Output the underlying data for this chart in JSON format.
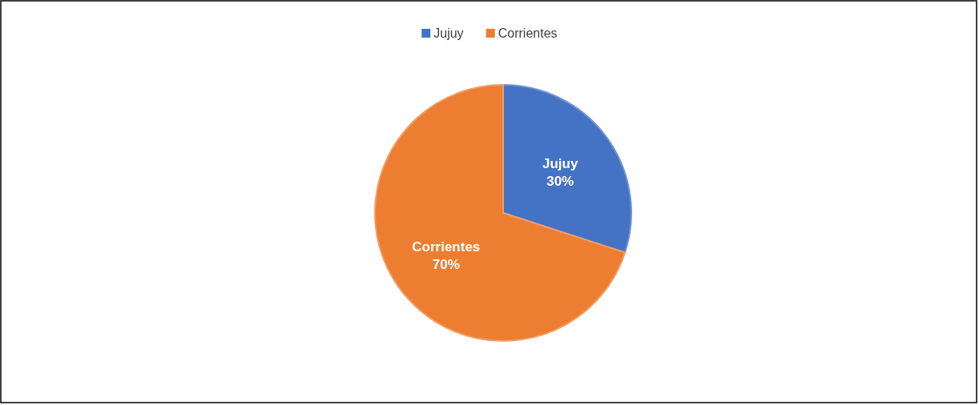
{
  "chart_data": {
    "type": "pie",
    "categories": [
      "Jujuy",
      "Corrientes"
    ],
    "values": [
      30,
      70
    ],
    "colors": [
      "#4472c4",
      "#ed7d31"
    ],
    "value_labels": [
      "30%",
      "70%"
    ],
    "legend": "top"
  }
}
